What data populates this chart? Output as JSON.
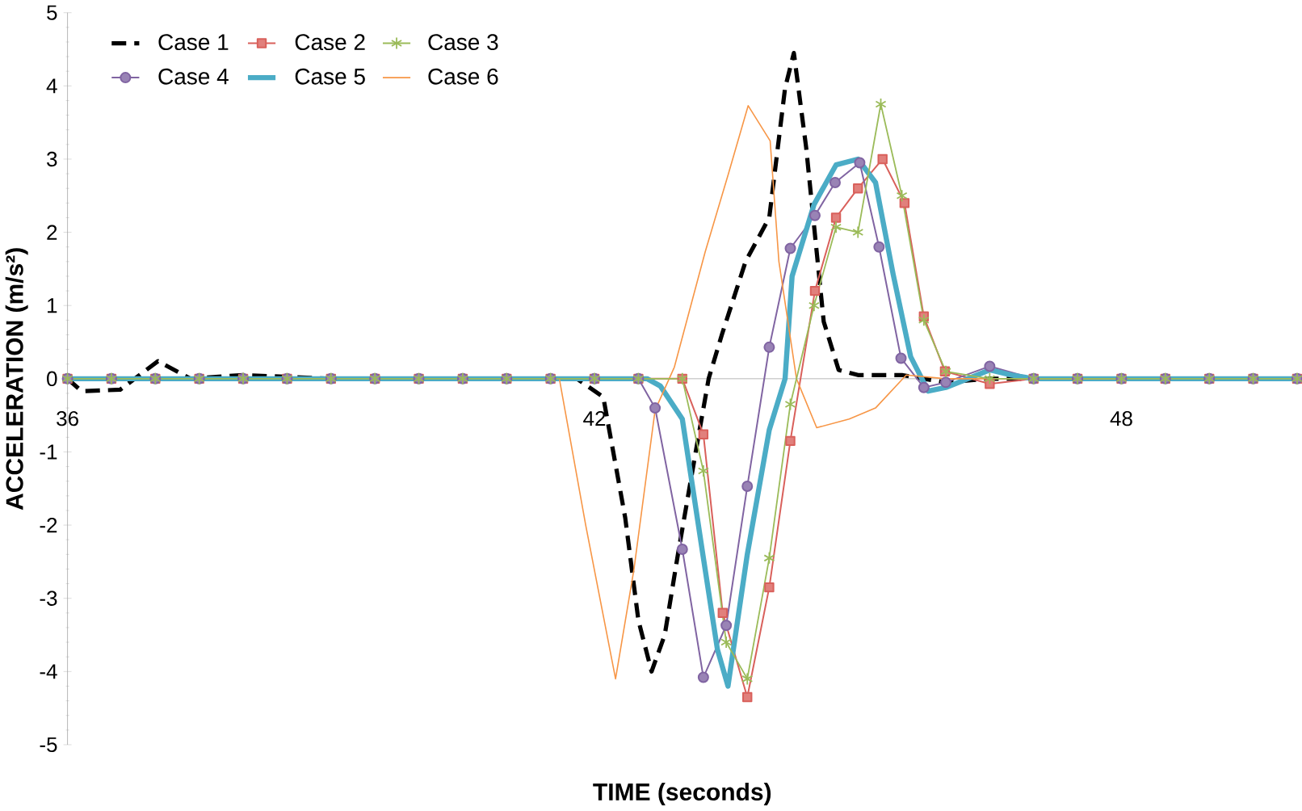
{
  "chart_data": {
    "type": "line",
    "xlabel": "TIME (seconds)",
    "ylabel": "ACCELERATION (m/s²)",
    "xlim": [
      36,
      50
    ],
    "ylim": [
      -5,
      5
    ],
    "xticks": [
      36,
      42,
      48
    ],
    "yticks": [
      -5,
      -4,
      -3,
      -2,
      -1,
      0,
      1,
      2,
      3,
      4,
      5
    ],
    "grid": false,
    "legend": "top left",
    "series": [
      {
        "name": "Case 1",
        "color": "#000000",
        "line_style": "dashed",
        "marker": "none",
        "x": [
          36,
          36.16,
          36.6,
          37.03,
          37.4,
          38,
          39,
          40,
          41,
          41.8,
          42.1,
          42.35,
          42.5,
          42.65,
          42.8,
          42.95,
          43.16,
          43.3,
          43.45,
          43.72,
          43.99,
          44.17,
          44.27,
          44.41,
          44.61,
          44.78,
          45,
          45.5,
          46,
          46.5,
          47,
          48,
          49,
          50
        ],
        "values": [
          0,
          -0.17,
          -0.15,
          0.24,
          0,
          0.05,
          0,
          0,
          0,
          0,
          -0.25,
          -1.9,
          -3.3,
          -4.0,
          -3.5,
          -2.4,
          -0.95,
          0,
          0.6,
          1.6,
          2.2,
          3.97,
          4.45,
          3.16,
          0.78,
          0.12,
          0.05,
          0.05,
          -0.05,
          0,
          0,
          0,
          0,
          0
        ]
      },
      {
        "name": "Case 2",
        "color": "#d9605b",
        "line_style": "solid",
        "marker": "square",
        "x": [
          36,
          36.5,
          37,
          37.5,
          38,
          38.5,
          39,
          39.5,
          40,
          40.5,
          41,
          41.5,
          42,
          42.5,
          43,
          43.24,
          43.46,
          43.74,
          43.99,
          44.23,
          44.51,
          44.75,
          45.0,
          45.28,
          45.53,
          45.75,
          45.99,
          46.5,
          47,
          47.5,
          48,
          48.5,
          49,
          49.5,
          50
        ],
        "values": [
          0,
          0,
          0,
          0,
          0,
          0,
          0,
          0,
          0,
          0,
          0,
          0,
          0,
          0,
          0,
          -0.76,
          -3.2,
          -4.35,
          -2.85,
          -0.85,
          1.2,
          2.2,
          2.6,
          3.0,
          2.4,
          0.85,
          0.1,
          -0.07,
          0,
          0,
          0,
          0,
          0,
          0,
          0
        ]
      },
      {
        "name": "Case 3",
        "color": "#9bbb59",
        "line_style": "solid",
        "marker": "cross",
        "x": [
          36,
          36.5,
          37,
          37.5,
          38,
          38.5,
          39,
          39.5,
          40,
          40.5,
          41,
          41.5,
          42,
          42.5,
          43,
          43.24,
          43.5,
          43.74,
          43.99,
          44.23,
          44.5,
          44.75,
          45.0,
          45.26,
          45.5,
          45.75,
          46.0,
          46.5,
          47,
          47.5,
          48,
          48.5,
          49,
          49.5,
          50
        ],
        "values": [
          0,
          0,
          0,
          0,
          0,
          0,
          0,
          0,
          0,
          0,
          0,
          0,
          0,
          0,
          0,
          -1.26,
          -3.6,
          -4.1,
          -2.45,
          -0.35,
          1.0,
          2.07,
          2.0,
          3.75,
          2.5,
          0.8,
          0.1,
          0,
          0,
          0,
          0,
          0,
          0,
          0,
          0
        ]
      },
      {
        "name": "Case 4",
        "color": "#8064a2",
        "line_style": "solid",
        "marker": "circle",
        "x": [
          36,
          36.5,
          37,
          37.5,
          38,
          38.5,
          39,
          39.5,
          40,
          40.5,
          41,
          41.5,
          42,
          42.5,
          42.69,
          43.0,
          43.24,
          43.5,
          43.74,
          43.99,
          44.23,
          44.51,
          44.74,
          45.02,
          45.24,
          45.49,
          45.75,
          46.0,
          46.5,
          47,
          47.5,
          48,
          48.5,
          49,
          49.5,
          50
        ],
        "values": [
          0,
          0,
          0,
          0,
          0,
          0,
          0,
          0,
          0,
          0,
          0,
          0,
          0,
          0,
          -0.4,
          -2.33,
          -4.08,
          -3.37,
          -1.47,
          0.43,
          1.78,
          2.23,
          2.68,
          2.95,
          1.8,
          0.28,
          -0.12,
          -0.05,
          0.17,
          0,
          0,
          0,
          0,
          0,
          0,
          0
        ]
      },
      {
        "name": "Case 5",
        "color": "#4bacc6",
        "line_style": "solid",
        "marker": "none",
        "x": [
          36,
          37,
          38,
          39,
          40,
          41,
          42,
          42.6,
          42.75,
          43.0,
          43.24,
          43.4,
          43.52,
          43.74,
          43.99,
          44.17,
          44.25,
          44.5,
          44.75,
          45.0,
          45.2,
          45.4,
          45.6,
          45.8,
          46.0,
          46.5,
          46.75,
          47,
          48,
          49,
          50
        ],
        "values": [
          0,
          0,
          0,
          0,
          0,
          0,
          0,
          0,
          -0.1,
          -0.55,
          -2.45,
          -3.7,
          -4.2,
          -2.4,
          -0.7,
          0,
          1.4,
          2.38,
          2.92,
          3.0,
          2.68,
          1.43,
          0.3,
          -0.17,
          -0.12,
          0.12,
          0.05,
          0,
          0,
          0,
          0
        ]
      },
      {
        "name": "Case 6",
        "color": "#f79646",
        "line_style": "solid",
        "marker": "none",
        "x": [
          41.6,
          41.9,
          42.24,
          42.45,
          42.69,
          42.91,
          43.26,
          43.52,
          43.75,
          44.0,
          44.1,
          44.3,
          44.53,
          44.9,
          45.2,
          45.55,
          46,
          47,
          48
        ],
        "values": [
          0,
          -2.0,
          -4.1,
          -2.6,
          -0.43,
          0.16,
          1.73,
          2.78,
          3.73,
          3.25,
          1.6,
          0,
          -0.67,
          -0.55,
          -0.4,
          0.05,
          0,
          0,
          0
        ]
      }
    ]
  }
}
